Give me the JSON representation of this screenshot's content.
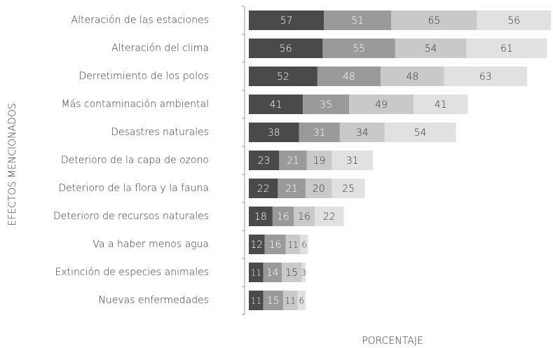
{
  "chart_data": {
    "type": "stacked-bar",
    "orientation": "horizontal",
    "y_label": "EFECTOS MENCIONADOS",
    "x_label": "PORCENTAJE",
    "categories": [
      "Alteración de las estaciones",
      "Alteración del clima",
      "Derretimiento de los polos",
      "Más contaminación ambiental",
      "Desastres naturales",
      "Deterioro de la capa de ozono",
      "Deterioro de la flora y la fauna",
      "Deterioro de recursos naturales",
      "Va a haber menos agua",
      "Extinción de especies animales",
      "Nuevas enfermedades"
    ],
    "series": [
      {
        "color": "#4a4a4a",
        "label_color": "#ffffff",
        "values": [
          57,
          56,
          52,
          41,
          38,
          23,
          22,
          18,
          12,
          11,
          11
        ]
      },
      {
        "color": "#9a9a9a",
        "label_color": "#ffffff",
        "values": [
          51,
          55,
          48,
          35,
          31,
          21,
          21,
          16,
          16,
          14,
          15
        ]
      },
      {
        "color": "#c9c9c9",
        "label_color": "#333333",
        "values": [
          65,
          54,
          48,
          49,
          34,
          19,
          20,
          16,
          11,
          15,
          11
        ]
      },
      {
        "color": "#e1e1e1",
        "label_color": "#333333",
        "values": [
          56,
          61,
          63,
          41,
          54,
          31,
          25,
          22,
          6,
          3,
          6
        ]
      }
    ]
  }
}
